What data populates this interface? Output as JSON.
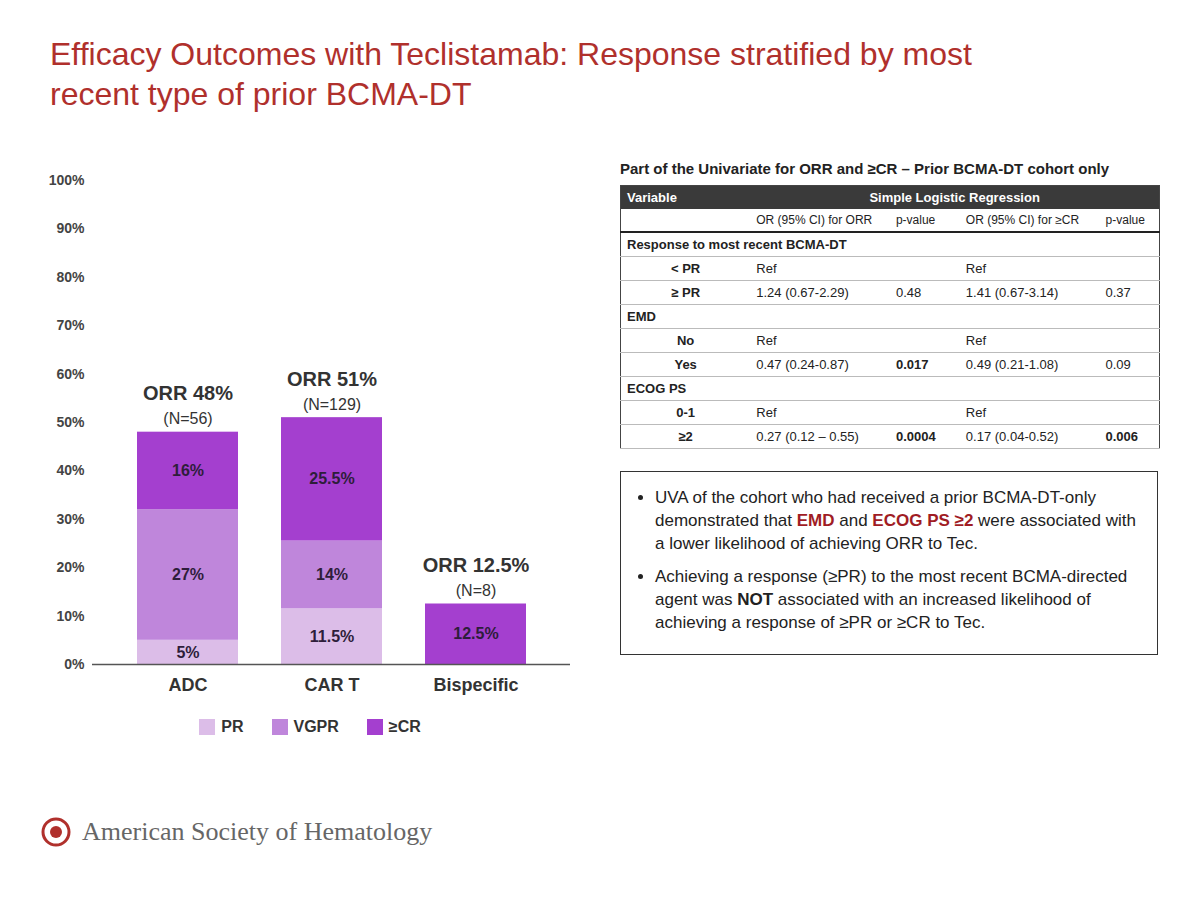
{
  "slide": {
    "title": "Efficacy Outcomes with Teclistamab: Response stratified by most recent type of prior BCMA-DT",
    "footer": "American Society of Hematology"
  },
  "chart_data": {
    "type": "bar",
    "stacked": true,
    "data_labels": true,
    "grid": false,
    "legend": "bottom",
    "categories": [
      "ADC",
      "CAR T",
      "Bispecific"
    ],
    "series": [
      {
        "name": "PR",
        "color": "#dcbde8",
        "values": [
          5,
          11.5,
          null
        ],
        "value_labels": [
          "5%",
          "11.5%",
          null
        ]
      },
      {
        "name": "VGPR",
        "color": "#bf86db",
        "values": [
          27,
          14,
          null
        ],
        "value_labels": [
          "27%",
          "14%",
          null
        ]
      },
      {
        "name": "≥CR",
        "color": "#a43fcf",
        "values": [
          16,
          25.5,
          12.5
        ],
        "value_labels": [
          "16%",
          "25.5%",
          "12.5%"
        ]
      }
    ],
    "ylim": [
      0,
      100
    ],
    "yticks": [
      {
        "value": 0,
        "label": "0%"
      },
      {
        "value": 10,
        "label": "10%"
      },
      {
        "value": 20,
        "label": "20%"
      },
      {
        "value": 30,
        "label": "30%"
      },
      {
        "value": 40,
        "label": "40%"
      },
      {
        "value": 50,
        "label": "50%"
      },
      {
        "value": 60,
        "label": "60%"
      },
      {
        "value": 70,
        "label": "70%"
      },
      {
        "value": 80,
        "label": "80%"
      },
      {
        "value": 90,
        "label": "90%"
      },
      {
        "value": 100,
        "label": "100%"
      }
    ],
    "annotations": [
      {
        "category": "ADC",
        "lines": [
          "ORR 48%",
          "(N=56)"
        ]
      },
      {
        "category": "CAR T",
        "lines": [
          "ORR 51%",
          "(N=129)"
        ]
      },
      {
        "category": "Bispecific",
        "lines": [
          "ORR 12.5%",
          "(N=8)"
        ]
      }
    ]
  },
  "table": {
    "title": "Part of the Univariate for ORR and ≥CR – Prior BCMA-DT cohort only",
    "header": [
      "Variable",
      "Simple Logistic Regression"
    ],
    "subheader": [
      null,
      "OR (95% CI) for ORR",
      "p-value",
      "OR (95% CI) for ≥CR",
      "p-value"
    ],
    "groups": [
      {
        "label": "Response to most recent BCMA-DT",
        "rows": [
          [
            "< PR",
            "Ref",
            null,
            "Ref",
            null
          ],
          [
            "≥ PR",
            "1.24 (0.67-2.29)",
            "0.48",
            "1.41 (0.67-3.14)",
            "0.37"
          ]
        ]
      },
      {
        "label": "EMD",
        "rows": [
          [
            "No",
            "Ref",
            null,
            "Ref",
            null
          ],
          [
            "Yes",
            "0.47 (0.24-0.87)",
            {
              "text": "0.017",
              "bold": true
            },
            "0.49 (0.21-1.08)",
            "0.09"
          ]
        ]
      },
      {
        "label": "ECOG PS",
        "rows": [
          [
            "0-1",
            "Ref",
            null,
            "Ref",
            null
          ],
          [
            "≥2",
            "0.27 (0.12 – 0.55)",
            {
              "text": "0.0004",
              "bold": true
            },
            "0.17 (0.04-0.52)",
            {
              "text": "0.006",
              "bold": true
            }
          ]
        ]
      }
    ]
  },
  "notes": [
    [
      "UVA of the cohort who had received a prior BCMA-DT-only demonstrated that ",
      {
        "text": "EMD",
        "bold": true,
        "color": "#a01c24"
      },
      " and ",
      {
        "text": "ECOG PS ≥2",
        "bold": true,
        "color": "#a01c24"
      },
      " were associated with a lower likelihood of achieving ORR to Tec."
    ],
    [
      "Achieving a response (≥PR) to the most recent BCMA-directed agent was ",
      {
        "text": "NOT",
        "bold": true
      },
      " associated with an increased likelihood of achieving a response of ≥PR or ≥CR to Tec."
    ]
  ]
}
